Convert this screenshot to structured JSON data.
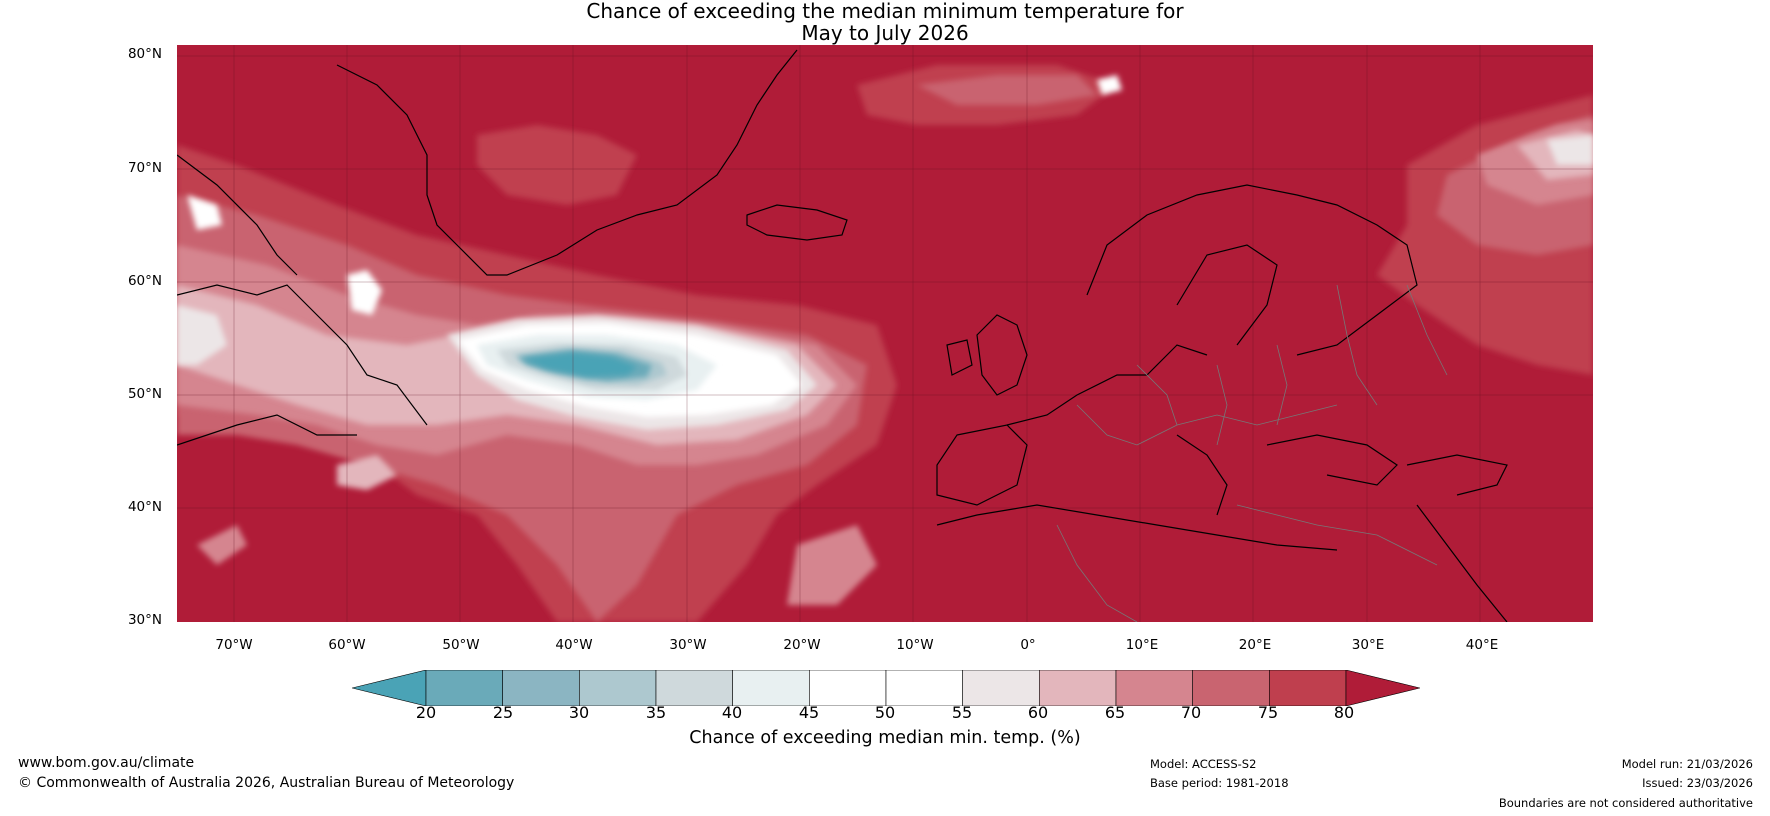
{
  "title": {
    "line1": "Chance of exceeding the median minimum temperature for",
    "line2": "May to July 2026"
  },
  "map": {
    "region": "North Atlantic and Europe",
    "lon_range": [
      -75,
      50
    ],
    "lat_range": [
      30,
      81
    ],
    "lat_labels": [
      "80°N",
      "70°N",
      "60°N",
      "50°N",
      "40°N",
      "30°N"
    ],
    "lon_labels": [
      "70°W",
      "60°W",
      "50°W",
      "40°W",
      "30°W",
      "20°W",
      "10°W",
      "0°",
      "10°E",
      "20°E",
      "30°E",
      "40°E"
    ],
    "dominant_category_percent": 80,
    "cool_anomaly_region": {
      "description_values_min_percent": 20,
      "center_lon": -40,
      "center_lat": 51
    }
  },
  "colorbar": {
    "ticks": [
      "20",
      "25",
      "30",
      "35",
      "40",
      "45",
      "50",
      "55",
      "60",
      "65",
      "70",
      "75",
      "80"
    ],
    "colors": [
      "#4aa3b6",
      "#6aaab9",
      "#8bb5c2",
      "#adc8cf",
      "#cfd9dc",
      "#e8f0f1",
      "#ffffff",
      "#ffffff",
      "#ece6e7",
      "#e3b6bc",
      "#d5858f",
      "#c96470",
      "#bf3f4e",
      "#b01c38"
    ],
    "label": "Chance of exceeding median min. temp. (%)"
  },
  "footer": {
    "left_line1": "www.bom.gov.au/climate",
    "left_line2": "© Commonwealth of Australia 2026, Australian Bureau of Meteorology",
    "model": "Model: ACCESS-S2",
    "base_period": "Base period: 1981-2018",
    "model_run": "Model run: 21/03/2026",
    "issued": "Issued: 23/03/2026",
    "disclaimer": "Boundaries are not considered authoritative"
  }
}
